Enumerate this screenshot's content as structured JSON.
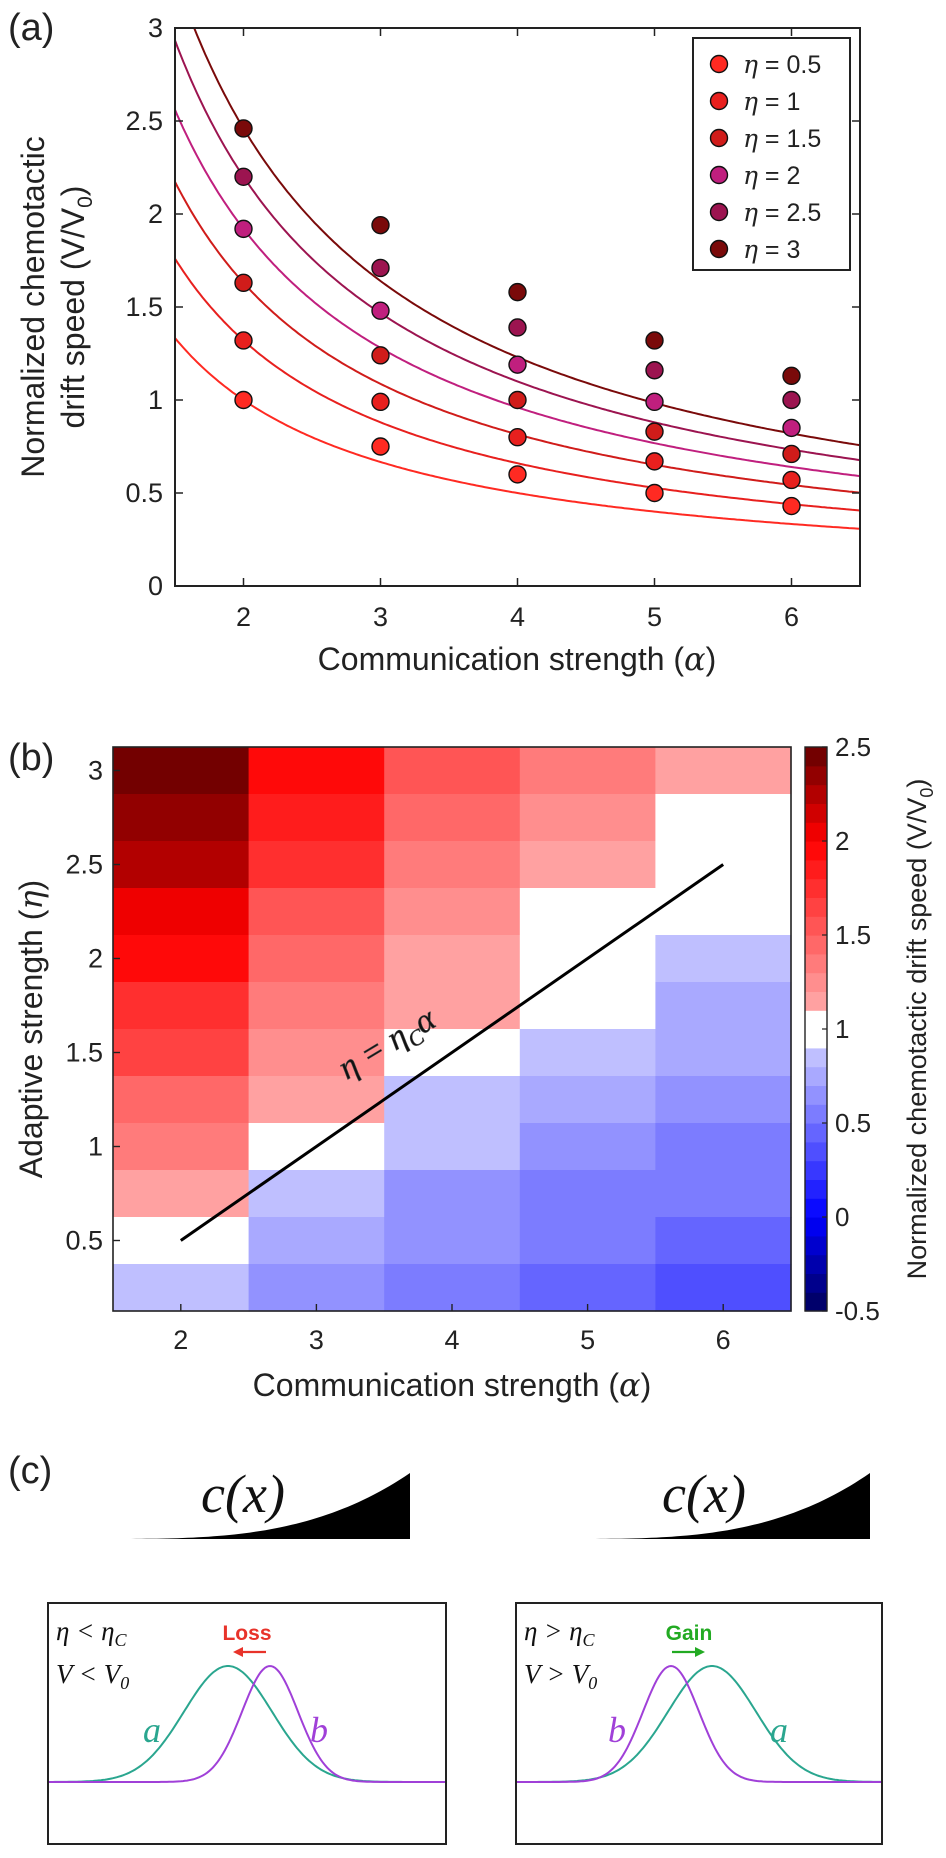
{
  "chart_data": [
    {
      "panel_label": "(a)",
      "type": "scatter",
      "xlabel_prefix": "Communication strength (",
      "xlabel_sym": "α",
      "xlabel_suffix": ")",
      "ylabel_line1": "Normalized chemotactic",
      "ylabel_line2": "drift speed (V/V",
      "ylabel_sub": "0",
      "ylabel_end": ")",
      "xlim": [
        1.5,
        6.5
      ],
      "ylim": [
        0,
        3
      ],
      "xticks": [
        2,
        3,
        4,
        5,
        6
      ],
      "yticks": [
        0,
        0.5,
        1,
        1.5,
        2,
        2.5,
        3
      ],
      "ytick_labels": [
        "0",
        "0.5",
        "1",
        "1.5",
        "2",
        "2.5",
        "3"
      ],
      "legend_position": "top-right",
      "legend_eq": " = ",
      "legend_sym": "η",
      "series": [
        {
          "eta": "0.5",
          "color": "#ff2a22",
          "x": [
            2,
            3,
            4,
            5,
            6
          ],
          "values": [
            1.0,
            0.75,
            0.6,
            0.5,
            0.43
          ]
        },
        {
          "eta": "1",
          "color": "#e8201e",
          "x": [
            2,
            3,
            4,
            5,
            6
          ],
          "values": [
            1.32,
            0.99,
            0.8,
            0.67,
            0.57
          ]
        },
        {
          "eta": "1.5",
          "color": "#d01c1a",
          "x": [
            2,
            3,
            4,
            5,
            6
          ],
          "values": [
            1.63,
            1.24,
            1.0,
            0.83,
            0.71
          ]
        },
        {
          "eta": "2",
          "color": "#c01f7e",
          "x": [
            2,
            3,
            4,
            5,
            6
          ],
          "values": [
            1.92,
            1.48,
            1.19,
            0.99,
            0.85
          ]
        },
        {
          "eta": "2.5",
          "color": "#9c1450",
          "x": [
            2,
            3,
            4,
            5,
            6
          ],
          "values": [
            2.2,
            1.71,
            1.39,
            1.16,
            1.0
          ]
        },
        {
          "eta": "3",
          "color": "#7a0a0a",
          "x": [
            2,
            3,
            4,
            5,
            6
          ],
          "values": [
            2.46,
            1.94,
            1.58,
            1.32,
            1.13
          ]
        }
      ]
    },
    {
      "panel_label": "(b)",
      "type": "heatmap",
      "xlabel_prefix": "Communication strength (",
      "xlabel_sym": "α",
      "xlabel_suffix": ")",
      "ylabel_prefix": "Adaptive strength (",
      "ylabel_sym": "η",
      "ylabel_suffix": ")",
      "x_categories": [
        2,
        3,
        4,
        5,
        6
      ],
      "xtick_labels": [
        "2",
        "3",
        "4",
        "5",
        "6"
      ],
      "xlim": [
        1.5,
        6.5
      ],
      "ylim": [
        0.125,
        3.125
      ],
      "yticks": [
        0.5,
        1,
        1.5,
        2,
        2.5,
        3
      ],
      "ytick_labels": [
        "0.5",
        "1",
        "1.5",
        "2",
        "2.5",
        "3"
      ],
      "y_rows": [
        3.0,
        2.75,
        2.5,
        2.25,
        2.0,
        1.75,
        1.5,
        1.25,
        1.0,
        0.75,
        0.5,
        0.25
      ],
      "values_rows": [
        [
          2.46,
          1.94,
          1.58,
          1.32,
          1.13
        ],
        [
          2.35,
          1.82,
          1.49,
          1.24,
          1.07
        ],
        [
          2.2,
          1.71,
          1.39,
          1.16,
          1.0
        ],
        [
          2.06,
          1.59,
          1.29,
          1.08,
          0.93
        ],
        [
          1.92,
          1.48,
          1.19,
          0.99,
          0.85
        ],
        [
          1.78,
          1.36,
          1.1,
          0.91,
          0.78
        ],
        [
          1.63,
          1.24,
          1.0,
          0.83,
          0.71
        ],
        [
          1.48,
          1.12,
          0.9,
          0.75,
          0.64
        ],
        [
          1.32,
          0.99,
          0.8,
          0.67,
          0.57
        ],
        [
          1.16,
          0.87,
          0.7,
          0.58,
          0.5
        ],
        [
          1.0,
          0.75,
          0.6,
          0.5,
          0.43
        ],
        [
          0.84,
          0.62,
          0.5,
          0.42,
          0.36
        ]
      ],
      "colorbar_range": [
        -0.5,
        2.5
      ],
      "colorbar_ticks": [
        -0.5,
        0,
        0.5,
        1,
        1.5,
        2,
        2.5
      ],
      "colorbar_tick_labels": [
        "-0.5",
        "0",
        "0.5",
        "1",
        "1.5",
        "2",
        "2.5"
      ],
      "colorbar_label": "Normalized chemotactic drift speed (V/V",
      "colorbar_label_sub": "0",
      "colorbar_label_end": ")",
      "critical_line": {
        "x": [
          2,
          6
        ],
        "y": [
          0.5,
          2.5
        ]
      },
      "annotation": "η = η",
      "annotation_sub": "C",
      "annotation_tail": "α"
    }
  ],
  "panel_c": {
    "label": "(c)",
    "concentration_label": "c(x)",
    "left": {
      "cond1": "η < η",
      "cond1_sub": "C",
      "cond2": "V < V",
      "cond2_sub": "0",
      "arrow_label": "Loss",
      "arrow_color": "#e8332a",
      "curve_a": "a",
      "curve_b": "b"
    },
    "right": {
      "cond1": "η > η",
      "cond1_sub": "C",
      "cond2": "V > V",
      "cond2_sub": "0",
      "arrow_label": "Gain",
      "arrow_color": "#22aa22",
      "curve_a": "a",
      "curve_b": "b"
    },
    "color_a": "#2aa68f",
    "color_b": "#a040d8"
  }
}
